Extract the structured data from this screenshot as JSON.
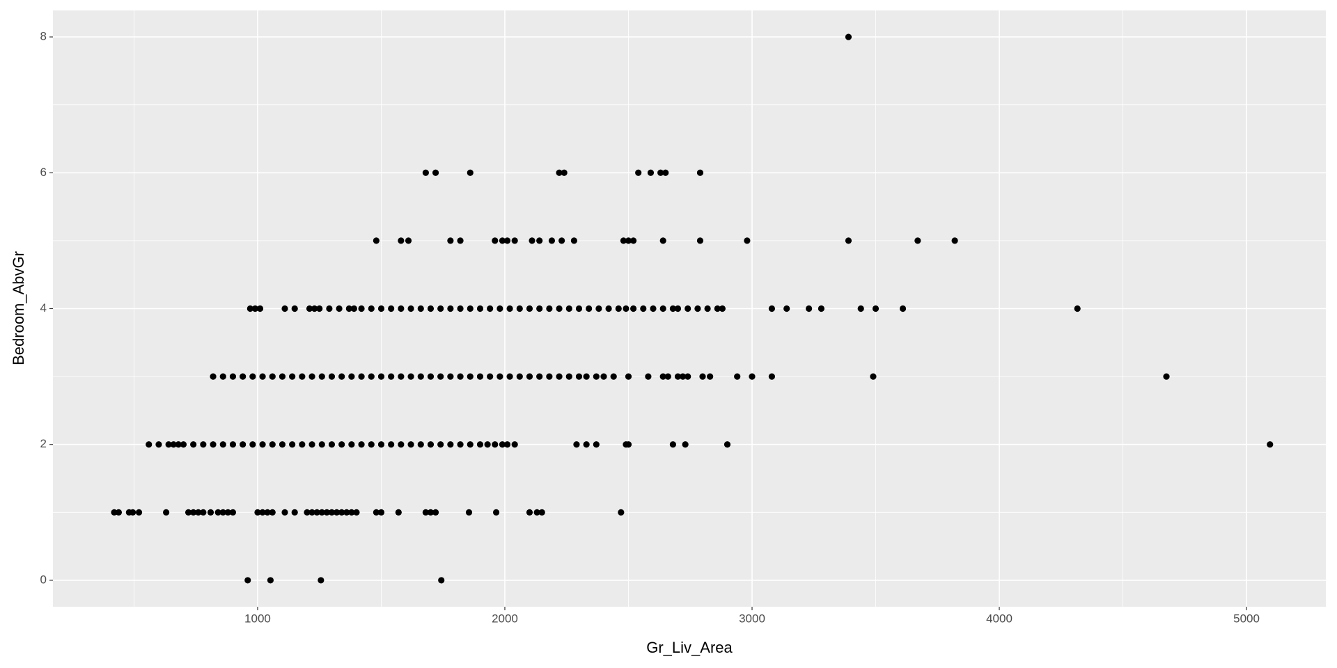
{
  "chart_data": {
    "type": "scatter",
    "x_label": "Gr_Liv_Area",
    "y_label": "Bedroom_AbvGr",
    "xlim": [
      172,
      5321
    ],
    "ylim": [
      -0.39,
      8.39
    ],
    "xticks": [
      1000,
      2000,
      3000,
      4000,
      5000
    ],
    "yticks": [
      0,
      2,
      4,
      6,
      8
    ],
    "grid": true,
    "color": "#000000",
    "points": [
      [
        960,
        0
      ],
      [
        1052,
        0
      ],
      [
        1256,
        0
      ],
      [
        1743,
        0
      ],
      [
        420,
        1
      ],
      [
        438,
        1
      ],
      [
        480,
        1
      ],
      [
        495,
        1
      ],
      [
        520,
        1
      ],
      [
        630,
        1
      ],
      [
        720,
        1
      ],
      [
        740,
        1
      ],
      [
        760,
        1
      ],
      [
        780,
        1
      ],
      [
        810,
        1
      ],
      [
        840,
        1
      ],
      [
        860,
        1
      ],
      [
        880,
        1
      ],
      [
        900,
        1
      ],
      [
        1000,
        1
      ],
      [
        1020,
        1
      ],
      [
        1040,
        1
      ],
      [
        1060,
        1
      ],
      [
        1110,
        1
      ],
      [
        1150,
        1
      ],
      [
        1200,
        1
      ],
      [
        1220,
        1
      ],
      [
        1240,
        1
      ],
      [
        1260,
        1
      ],
      [
        1280,
        1
      ],
      [
        1300,
        1
      ],
      [
        1320,
        1
      ],
      [
        1340,
        1
      ],
      [
        1360,
        1
      ],
      [
        1380,
        1
      ],
      [
        1400,
        1
      ],
      [
        1480,
        1
      ],
      [
        1500,
        1
      ],
      [
        1570,
        1
      ],
      [
        1680,
        1
      ],
      [
        1700,
        1
      ],
      [
        1720,
        1
      ],
      [
        1855,
        1
      ],
      [
        1965,
        1
      ],
      [
        2100,
        1
      ],
      [
        2130,
        1
      ],
      [
        2150,
        1
      ],
      [
        2470,
        1
      ],
      [
        560,
        2
      ],
      [
        600,
        2
      ],
      [
        640,
        2
      ],
      [
        660,
        2
      ],
      [
        680,
        2
      ],
      [
        700,
        2
      ],
      [
        740,
        2
      ],
      [
        780,
        2
      ],
      [
        820,
        2
      ],
      [
        860,
        2
      ],
      [
        900,
        2
      ],
      [
        940,
        2
      ],
      [
        980,
        2
      ],
      [
        1020,
        2
      ],
      [
        1060,
        2
      ],
      [
        1100,
        2
      ],
      [
        1140,
        2
      ],
      [
        1180,
        2
      ],
      [
        1220,
        2
      ],
      [
        1260,
        2
      ],
      [
        1300,
        2
      ],
      [
        1340,
        2
      ],
      [
        1380,
        2
      ],
      [
        1420,
        2
      ],
      [
        1460,
        2
      ],
      [
        1500,
        2
      ],
      [
        1540,
        2
      ],
      [
        1580,
        2
      ],
      [
        1620,
        2
      ],
      [
        1660,
        2
      ],
      [
        1700,
        2
      ],
      [
        1740,
        2
      ],
      [
        1780,
        2
      ],
      [
        1820,
        2
      ],
      [
        1860,
        2
      ],
      [
        1900,
        2
      ],
      [
        1930,
        2
      ],
      [
        1960,
        2
      ],
      [
        1990,
        2
      ],
      [
        2010,
        2
      ],
      [
        2040,
        2
      ],
      [
        2290,
        2
      ],
      [
        2330,
        2
      ],
      [
        2370,
        2
      ],
      [
        2490,
        2
      ],
      [
        2500,
        2
      ],
      [
        2680,
        2
      ],
      [
        2730,
        2
      ],
      [
        2900,
        2
      ],
      [
        5095,
        2
      ],
      [
        820,
        3
      ],
      [
        860,
        3
      ],
      [
        900,
        3
      ],
      [
        940,
        3
      ],
      [
        980,
        3
      ],
      [
        1020,
        3
      ],
      [
        1060,
        3
      ],
      [
        1100,
        3
      ],
      [
        1140,
        3
      ],
      [
        1180,
        3
      ],
      [
        1220,
        3
      ],
      [
        1260,
        3
      ],
      [
        1300,
        3
      ],
      [
        1340,
        3
      ],
      [
        1380,
        3
      ],
      [
        1420,
        3
      ],
      [
        1460,
        3
      ],
      [
        1500,
        3
      ],
      [
        1540,
        3
      ],
      [
        1580,
        3
      ],
      [
        1620,
        3
      ],
      [
        1660,
        3
      ],
      [
        1700,
        3
      ],
      [
        1740,
        3
      ],
      [
        1780,
        3
      ],
      [
        1820,
        3
      ],
      [
        1860,
        3
      ],
      [
        1900,
        3
      ],
      [
        1940,
        3
      ],
      [
        1980,
        3
      ],
      [
        2020,
        3
      ],
      [
        2060,
        3
      ],
      [
        2100,
        3
      ],
      [
        2140,
        3
      ],
      [
        2180,
        3
      ],
      [
        2220,
        3
      ],
      [
        2260,
        3
      ],
      [
        2300,
        3
      ],
      [
        2330,
        3
      ],
      [
        2370,
        3
      ],
      [
        2400,
        3
      ],
      [
        2440,
        3
      ],
      [
        2500,
        3
      ],
      [
        2580,
        3
      ],
      [
        2640,
        3
      ],
      [
        2660,
        3
      ],
      [
        2700,
        3
      ],
      [
        2720,
        3
      ],
      [
        2740,
        3
      ],
      [
        2800,
        3
      ],
      [
        2830,
        3
      ],
      [
        2940,
        3
      ],
      [
        3000,
        3
      ],
      [
        3080,
        3
      ],
      [
        3490,
        3
      ],
      [
        4676,
        3
      ],
      [
        970,
        4
      ],
      [
        990,
        4
      ],
      [
        1010,
        4
      ],
      [
        1110,
        4
      ],
      [
        1150,
        4
      ],
      [
        1210,
        4
      ],
      [
        1230,
        4
      ],
      [
        1250,
        4
      ],
      [
        1290,
        4
      ],
      [
        1330,
        4
      ],
      [
        1370,
        4
      ],
      [
        1390,
        4
      ],
      [
        1420,
        4
      ],
      [
        1460,
        4
      ],
      [
        1500,
        4
      ],
      [
        1540,
        4
      ],
      [
        1580,
        4
      ],
      [
        1620,
        4
      ],
      [
        1660,
        4
      ],
      [
        1700,
        4
      ],
      [
        1740,
        4
      ],
      [
        1780,
        4
      ],
      [
        1820,
        4
      ],
      [
        1860,
        4
      ],
      [
        1900,
        4
      ],
      [
        1940,
        4
      ],
      [
        1980,
        4
      ],
      [
        2020,
        4
      ],
      [
        2060,
        4
      ],
      [
        2100,
        4
      ],
      [
        2140,
        4
      ],
      [
        2180,
        4
      ],
      [
        2220,
        4
      ],
      [
        2260,
        4
      ],
      [
        2300,
        4
      ],
      [
        2340,
        4
      ],
      [
        2380,
        4
      ],
      [
        2420,
        4
      ],
      [
        2460,
        4
      ],
      [
        2490,
        4
      ],
      [
        2520,
        4
      ],
      [
        2560,
        4
      ],
      [
        2600,
        4
      ],
      [
        2640,
        4
      ],
      [
        2680,
        4
      ],
      [
        2700,
        4
      ],
      [
        2740,
        4
      ],
      [
        2780,
        4
      ],
      [
        2820,
        4
      ],
      [
        2860,
        4
      ],
      [
        2880,
        4
      ],
      [
        3080,
        4
      ],
      [
        3140,
        4
      ],
      [
        3230,
        4
      ],
      [
        3280,
        4
      ],
      [
        3440,
        4
      ],
      [
        3500,
        4
      ],
      [
        3610,
        4
      ],
      [
        4316,
        4
      ],
      [
        1480,
        5
      ],
      [
        1580,
        5
      ],
      [
        1610,
        5
      ],
      [
        1780,
        5
      ],
      [
        1820,
        5
      ],
      [
        1960,
        5
      ],
      [
        1990,
        5
      ],
      [
        2010,
        5
      ],
      [
        2040,
        5
      ],
      [
        2110,
        5
      ],
      [
        2140,
        5
      ],
      [
        2190,
        5
      ],
      [
        2230,
        5
      ],
      [
        2280,
        5
      ],
      [
        2480,
        5
      ],
      [
        2500,
        5
      ],
      [
        2520,
        5
      ],
      [
        2640,
        5
      ],
      [
        2790,
        5
      ],
      [
        2980,
        5
      ],
      [
        3390,
        5
      ],
      [
        3670,
        5
      ],
      [
        3820,
        5
      ],
      [
        1680,
        6
      ],
      [
        1720,
        6
      ],
      [
        1860,
        6
      ],
      [
        2220,
        6
      ],
      [
        2240,
        6
      ],
      [
        2540,
        6
      ],
      [
        2590,
        6
      ],
      [
        2630,
        6
      ],
      [
        2650,
        6
      ],
      [
        2790,
        6
      ],
      [
        3390,
        8
      ]
    ]
  }
}
